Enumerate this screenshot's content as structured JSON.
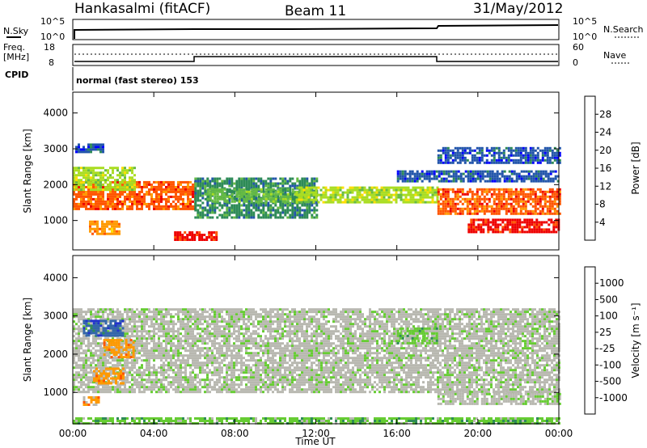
{
  "header": {
    "title": "Hankasalmi (fitACF)",
    "beam": "Beam 11",
    "date": "31/May/2012"
  },
  "noise": {
    "left_label": "N.Sky",
    "right_label": "N.Search",
    "left_ticks": [
      "10^5",
      "10^0"
    ],
    "right_ticks": [
      "10^5",
      "10^0"
    ]
  },
  "freq": {
    "left_label_1": "Freq.",
    "left_label_2": "[MHz]",
    "left_ticks": [
      "18",
      "8"
    ],
    "right_label": "Nave",
    "right_ticks": [
      "60",
      "0"
    ]
  },
  "cpid": {
    "label": "CPID",
    "mode": "normal (fast stereo) 153"
  },
  "colors": {
    "power_scale": [
      "#0000ff",
      "#2255aa",
      "#2e8b57",
      "#66bb44",
      "#aadd22",
      "#ffdd00",
      "#ff9900",
      "#ff5500",
      "#ee0000"
    ],
    "velocity_scale": [
      "#2233cc",
      "#3366aa",
      "#2e8b57",
      "#66cc33",
      "#b8b8b0",
      "#b8b8b0",
      "#ff9900",
      "#ff5500",
      "#ee0000"
    ]
  },
  "chart_data": [
    {
      "type": "heatmap",
      "name": "power",
      "ylabel": "Slant Range [km]",
      "y_ticks": [
        1000,
        2000,
        3000,
        4000
      ],
      "ylim": [
        180,
        4580
      ],
      "x_ticks": [
        "00:00",
        "04:00",
        "08:00",
        "12:00",
        "16:00",
        "20:00",
        "00:00"
      ],
      "xlim_hours": [
        0,
        24
      ],
      "colorbar": {
        "label": "Power [dB]",
        "ticks": [
          "28",
          "24",
          "20",
          "16",
          "12",
          "8",
          "4"
        ]
      },
      "bands": [
        {
          "t0": 0.0,
          "t1": 6.0,
          "r0": 1300,
          "r1": 2100,
          "level": 7
        },
        {
          "t0": 0.0,
          "t1": 3.0,
          "r0": 1850,
          "r1": 2500,
          "level": 4
        },
        {
          "t0": 0.0,
          "t1": 1.5,
          "r0": 2900,
          "r1": 3150,
          "level": 1
        },
        {
          "t0": 0.8,
          "t1": 2.3,
          "r0": 650,
          "r1": 1000,
          "level": 6
        },
        {
          "t0": 5.0,
          "t1": 7.1,
          "r0": 450,
          "r1": 700,
          "level": 8
        },
        {
          "t0": 6.0,
          "t1": 12.0,
          "r0": 1050,
          "r1": 2200,
          "level": 2
        },
        {
          "t0": 6.5,
          "t1": 11.5,
          "r0": 1500,
          "r1": 1900,
          "level": 3
        },
        {
          "t0": 11.0,
          "t1": 18.0,
          "r0": 1500,
          "r1": 1950,
          "level": 4
        },
        {
          "t0": 16.0,
          "t1": 24.0,
          "r0": 2100,
          "r1": 2400,
          "level": 1
        },
        {
          "t0": 18.0,
          "t1": 24.0,
          "r0": 1200,
          "r1": 1900,
          "level": 7
        },
        {
          "t0": 19.5,
          "t1": 24.0,
          "r0": 700,
          "r1": 1050,
          "level": 8
        },
        {
          "t0": 18.0,
          "t1": 24.0,
          "r0": 2600,
          "r1": 3050,
          "level": 1
        }
      ]
    },
    {
      "type": "heatmap",
      "name": "velocity",
      "ylabel": "Slant Range [km]",
      "y_ticks": [
        1000,
        2000,
        3000,
        4000
      ],
      "ylim": [
        180,
        4580
      ],
      "x_ticks": [
        "00:00",
        "04:00",
        "08:00",
        "12:00",
        "16:00",
        "20:00",
        "00:00"
      ],
      "xlim_hours": [
        0,
        24
      ],
      "xlabel": "Time UT",
      "colorbar": {
        "label": "Velocity [m s⁻¹]",
        "ticks": [
          "1000",
          "500",
          "100",
          "25",
          "-25",
          "-100",
          "-500",
          "-1000"
        ]
      },
      "bands": [
        {
          "t0": 0.0,
          "t1": 24.0,
          "r0": 1000,
          "r1": 3200,
          "level": 4
        },
        {
          "t0": 1.0,
          "t1": 2.5,
          "r0": 1250,
          "r1": 1650,
          "level": 6
        },
        {
          "t0": 1.5,
          "t1": 3.0,
          "r0": 1900,
          "r1": 2400,
          "level": 6
        },
        {
          "t0": 0.5,
          "t1": 1.3,
          "r0": 650,
          "r1": 900,
          "level": 6
        },
        {
          "t0": 0.5,
          "t1": 2.5,
          "r0": 2500,
          "r1": 2900,
          "level": 1
        },
        {
          "t0": 0.0,
          "t1": 24.0,
          "r0": 180,
          "r1": 350,
          "level": 3
        },
        {
          "t0": 16.0,
          "t1": 18.0,
          "r0": 2300,
          "r1": 2700,
          "level": 3
        },
        {
          "t0": 18.0,
          "t1": 24.0,
          "r0": 700,
          "r1": 1050,
          "level": 4
        }
      ]
    }
  ]
}
